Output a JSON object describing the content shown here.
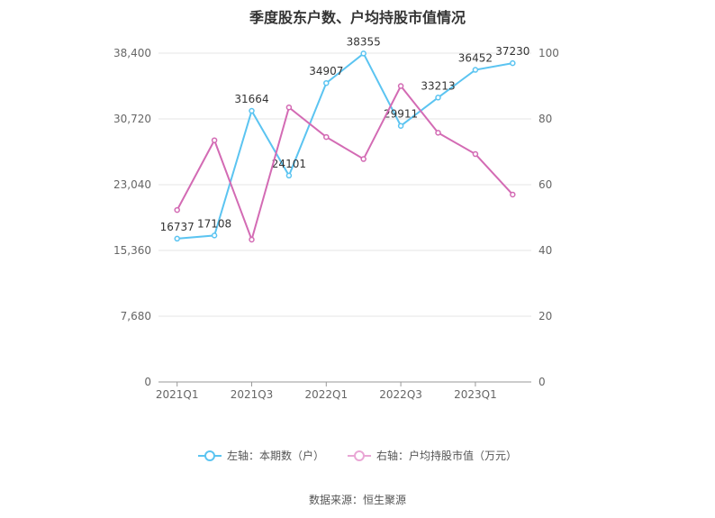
{
  "chart_data": {
    "type": "line",
    "title": "季度股东户数、户均持股市值情况",
    "categories": [
      "2021Q1",
      "2021Q2",
      "2021Q3",
      "2021Q4",
      "2022Q1",
      "2022Q2",
      "2022Q3",
      "2022Q4",
      "2023Q1",
      "2023Q2"
    ],
    "x_tick_labels": [
      "2021Q1",
      "2021Q3",
      "2022Q1",
      "2022Q3",
      "2023Q1"
    ],
    "left_axis": {
      "ticks": [
        "0",
        "7,680",
        "15,360",
        "23,040",
        "30,720",
        "38,400"
      ],
      "ylim": [
        0,
        38400
      ]
    },
    "right_axis": {
      "ticks": [
        "0",
        "20",
        "40",
        "60",
        "80",
        "100"
      ],
      "ylim": [
        0,
        100
      ]
    },
    "series": [
      {
        "name": "左轴：本期数（户）",
        "axis": "left",
        "color": "#5bc4f1",
        "values": [
          16737,
          17108,
          31664,
          24101,
          34907,
          38355,
          29911,
          33213,
          36452,
          37230
        ],
        "labels": [
          "16737",
          "17108",
          "31664",
          "24101",
          "34907",
          "38355",
          "29911",
          "33213",
          "36452",
          "37230"
        ]
      },
      {
        "name": "右轴：户均持股市值（万元）",
        "axis": "right",
        "color": "#d36bb4",
        "values": [
          52.3,
          73.5,
          43.3,
          83.5,
          74.5,
          67.8,
          90.0,
          75.8,
          69.3,
          57.0
        ]
      }
    ],
    "grid": true,
    "legend_position": "bottom"
  },
  "source": "数据来源：恒生聚源"
}
